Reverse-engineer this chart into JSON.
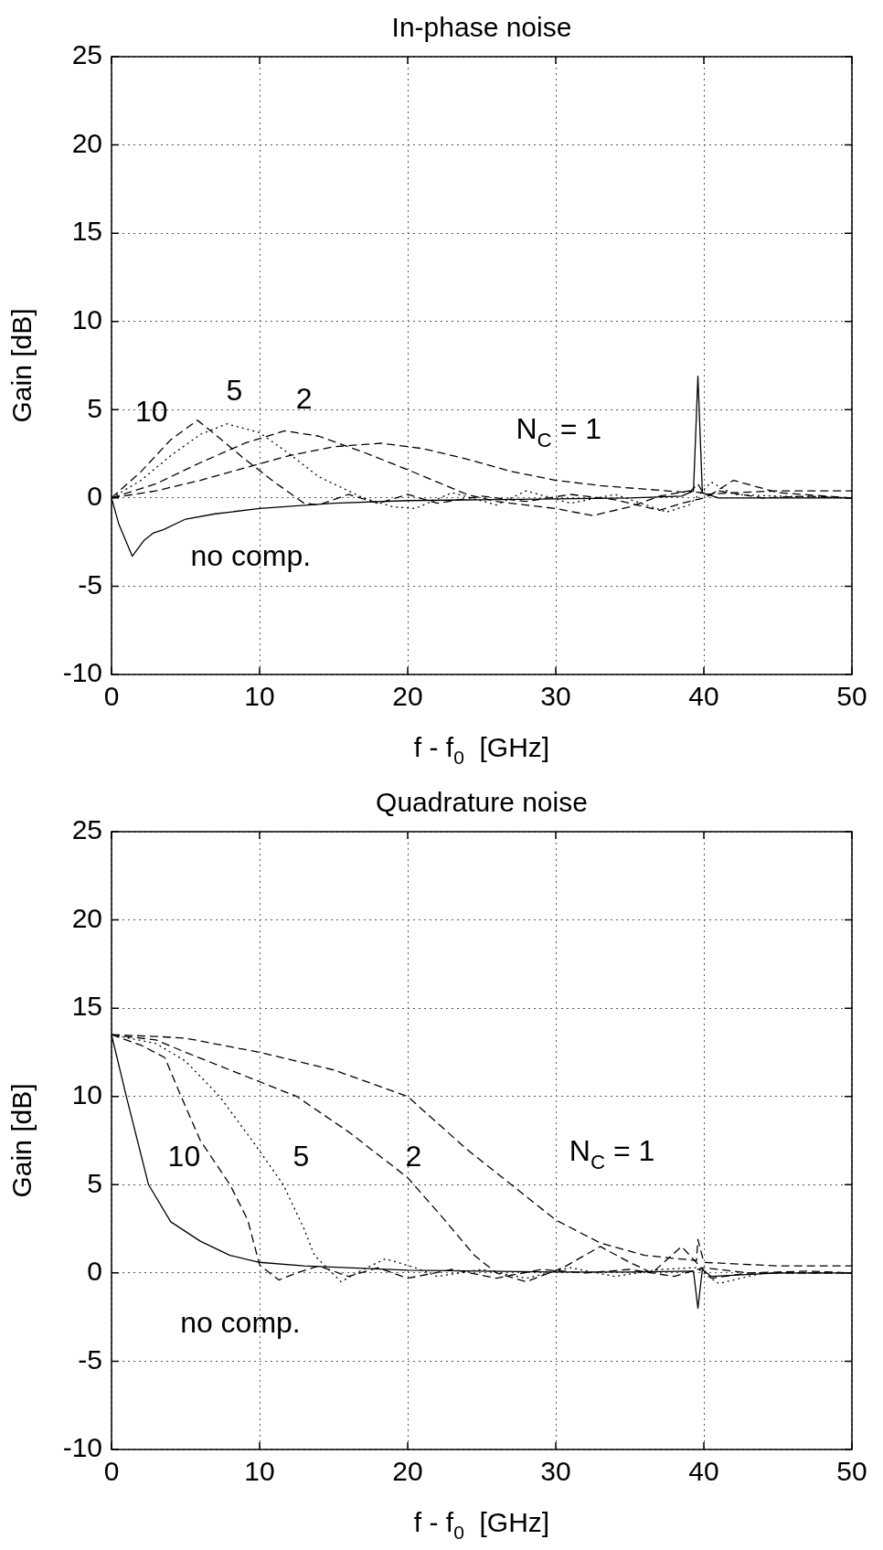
{
  "chart_data": [
    {
      "type": "line",
      "title": "In-phase noise",
      "xlabel": "f - f$_{0}$  [GHz]",
      "ylabel": "Gain [dB]",
      "xlim": [
        0,
        50
      ],
      "xticks": [
        0,
        10,
        20,
        30,
        40,
        50
      ],
      "ylim": [
        -10,
        25
      ],
      "yticks": [
        -10,
        -5,
        0,
        5,
        10,
        15,
        20,
        25
      ],
      "grid": true,
      "legend": false,
      "marker": "none",
      "series": [
        {
          "color": "#000000",
          "line_style": "solid",
          "x": [
            0,
            0.5,
            1.4,
            2.2,
            2.8,
            3.5,
            5,
            7,
            10,
            15,
            20,
            25,
            30,
            35,
            38.5,
            39.3,
            39.6,
            39.9,
            41,
            45,
            50
          ],
          "values": [
            0,
            -1.5,
            -3.3,
            -2.4,
            -2.0,
            -1.8,
            -1.2,
            -0.9,
            -0.6,
            -0.3,
            -0.15,
            -0.1,
            -0.05,
            0,
            0.1,
            0.4,
            6.9,
            0.3,
            0,
            0,
            0
          ]
        },
        {
          "color": "#000000",
          "line_style": "dashed",
          "x": [
            0,
            2,
            4,
            5.8,
            7,
            9,
            11,
            13,
            14,
            16,
            18,
            20,
            22,
            25,
            28,
            31,
            34,
            37,
            38.5,
            40,
            41,
            44,
            47,
            50
          ],
          "values": [
            0,
            1.5,
            3.3,
            4.4,
            3.6,
            2.2,
            0.9,
            -0.3,
            -0.4,
            0.2,
            -0.3,
            0.2,
            -0.3,
            0.1,
            -0.2,
            0.2,
            -0.1,
            -0.7,
            -0.3,
            0,
            0.4,
            0,
            0.1,
            0
          ]
        },
        {
          "color": "#000000",
          "line_style": "dotted",
          "x": [
            0,
            2,
            4,
            6,
            7.8,
            10,
            12,
            14,
            17,
            19,
            20.5,
            23,
            26,
            28,
            31,
            34,
            37.5,
            39,
            40.5,
            42,
            45,
            50
          ],
          "values": [
            0,
            1.0,
            2.4,
            3.6,
            4.2,
            3.7,
            2.5,
            1.2,
            0,
            -0.5,
            -0.6,
            0.3,
            -0.4,
            0.4,
            -0.3,
            0.2,
            -0.8,
            -0.4,
            0.9,
            0.2,
            0.1,
            0
          ]
        },
        {
          "color": "#000000",
          "line_style": "dashed",
          "x": [
            0,
            3,
            6,
            9,
            11.7,
            14,
            17,
            20,
            22,
            24,
            26,
            28,
            30,
            32.5,
            35,
            37,
            39,
            40.5,
            42,
            45,
            50
          ],
          "values": [
            0,
            0.8,
            2.0,
            3.1,
            3.8,
            3.5,
            2.6,
            1.6,
            0.9,
            0.2,
            -0.2,
            -0.4,
            -0.6,
            -1.0,
            -0.5,
            0.1,
            0.4,
            0.2,
            1.0,
            0.3,
            0
          ]
        },
        {
          "color": "#000000",
          "line_style": "dashed",
          "x": [
            0,
            3,
            6,
            9,
            12,
            15,
            18.2,
            21,
            24,
            27,
            30,
            33,
            36,
            39,
            39.6,
            40,
            42,
            45,
            50
          ],
          "values": [
            0,
            0.4,
            1.0,
            1.7,
            2.4,
            2.9,
            3.1,
            2.8,
            2.2,
            1.5,
            1.0,
            0.7,
            0.5,
            0.3,
            0.8,
            0.2,
            0.3,
            0.4,
            0.4
          ]
        }
      ],
      "annotations": [
        "10",
        "5",
        "2",
        "N$_{C}$ = 1",
        "no comp."
      ]
    },
    {
      "type": "line",
      "title": "Quadrature noise",
      "xlabel": "f - f$_{0}$  [GHz]",
      "ylabel": "Gain [dB]",
      "xlim": [
        0,
        50
      ],
      "xticks": [
        0,
        10,
        20,
        30,
        40,
        50
      ],
      "ylim": [
        -10,
        25
      ],
      "yticks": [
        -10,
        -5,
        0,
        5,
        10,
        15,
        20,
        25
      ],
      "grid": true,
      "legend": false,
      "marker": "none",
      "series": [
        {
          "color": "#000000",
          "line_style": "solid",
          "x": [
            0,
            1,
            2.5,
            4,
            6,
            8,
            10,
            13,
            16,
            20,
            25,
            30,
            35,
            39.3,
            39.6,
            39.9,
            40.5,
            45,
            50
          ],
          "values": [
            13.5,
            10,
            5,
            2.9,
            1.8,
            1.0,
            0.6,
            0.4,
            0.3,
            0.15,
            0.1,
            0.05,
            0.05,
            0.1,
            -2.0,
            0.2,
            -0.2,
            0,
            0
          ]
        },
        {
          "color": "#000000",
          "line_style": "dashed",
          "x": [
            0,
            2,
            3.6,
            4.7,
            6,
            8,
            9.2,
            10,
            11.3,
            12.5,
            14,
            16,
            18,
            20,
            23,
            26,
            29,
            32,
            35,
            38,
            40,
            43,
            47,
            50
          ],
          "values": [
            13.5,
            12.9,
            12.2,
            10,
            7.5,
            5,
            3,
            0.45,
            -0.4,
            0,
            0.4,
            -0.2,
            0.3,
            -0.3,
            0.2,
            -0.3,
            0.2,
            0,
            0.2,
            -0.2,
            0.3,
            0,
            0.1,
            0
          ]
        },
        {
          "color": "#000000",
          "line_style": "dotted",
          "x": [
            0,
            3,
            5,
            7.3,
            9.5,
            11.6,
            13,
            13.7,
            15.5,
            17,
            18.5,
            20.5,
            22,
            25,
            28,
            31,
            34,
            37,
            39.5,
            41,
            44,
            50
          ],
          "values": [
            13.5,
            13,
            12,
            10,
            7.5,
            5,
            2.5,
            1,
            -0.5,
            0.2,
            0.8,
            0.3,
            -0.2,
            0.2,
            -0.3,
            0.3,
            -0.2,
            0.2,
            0.3,
            -0.6,
            0,
            0
          ]
        },
        {
          "color": "#000000",
          "line_style": "dashed",
          "x": [
            0,
            3,
            5,
            8,
            12.5,
            16,
            20,
            22.5,
            24.5,
            26,
            28,
            30.5,
            33,
            35,
            36.5,
            38.5,
            39.6,
            40.5,
            43,
            50
          ],
          "values": [
            13.5,
            13.2,
            12.5,
            11.5,
            10,
            8,
            5.4,
            3,
            1,
            0,
            -0.5,
            0.3,
            1.5,
            0.6,
            0,
            1.5,
            0.5,
            -0.3,
            0,
            0
          ]
        },
        {
          "color": "#000000",
          "line_style": "dashed",
          "x": [
            0,
            3,
            5,
            10,
            15,
            20,
            24,
            27,
            30,
            33,
            36,
            39.5,
            39.6,
            40,
            45,
            50
          ],
          "values": [
            13.5,
            13.4,
            13.3,
            12.5,
            11.5,
            10,
            7,
            5,
            3,
            1.7,
            1,
            0.7,
            1.9,
            0.6,
            0.4,
            0.4
          ]
        }
      ],
      "annotations": [
        "10",
        "5",
        "2",
        "N$_{C}$ = 1",
        "no comp."
      ]
    }
  ]
}
